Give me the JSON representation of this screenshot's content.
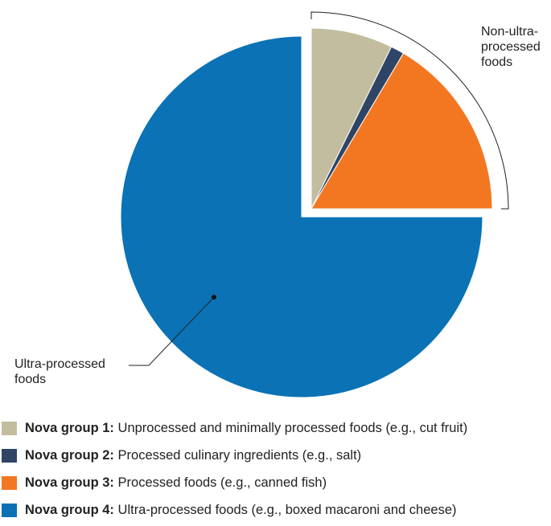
{
  "chart_data": {
    "type": "pie",
    "title": "",
    "slices": [
      {
        "label": "Nova group 1",
        "value": 7.3,
        "color": "#c3bd9f"
      },
      {
        "label": "Nova group 2",
        "value": 1.2,
        "color": "#2f4565"
      },
      {
        "label": "Nova group 3",
        "value": 16.5,
        "color": "#f37721"
      },
      {
        "label": "Nova group 4",
        "value": 75.0,
        "color": "#0a72b5"
      }
    ],
    "exploded": [
      "Nova group 1",
      "Nova group 2",
      "Nova group 3"
    ],
    "annotations": {
      "non_ultra": [
        "Non-ultra-",
        "processed",
        "foods"
      ],
      "ultra": [
        "Ultra-processed",
        "foods"
      ]
    }
  },
  "legend": [
    {
      "group": "Nova group 1:",
      "desc": " Unprocessed and minimally processed foods (e.g., cut fruit)",
      "color": "#c3bd9f"
    },
    {
      "group": "Nova group 2:",
      "desc": " Processed culinary ingredients (e.g., salt)",
      "color": "#2f4565"
    },
    {
      "group": "Nova group 3:",
      "desc": " Processed foods (e.g., canned fish)",
      "color": "#f37721"
    },
    {
      "group": "Nova group 4:",
      "desc": " Ultra-processed foods (e.g., boxed macaroni and cheese)",
      "color": "#0a72b5"
    }
  ]
}
